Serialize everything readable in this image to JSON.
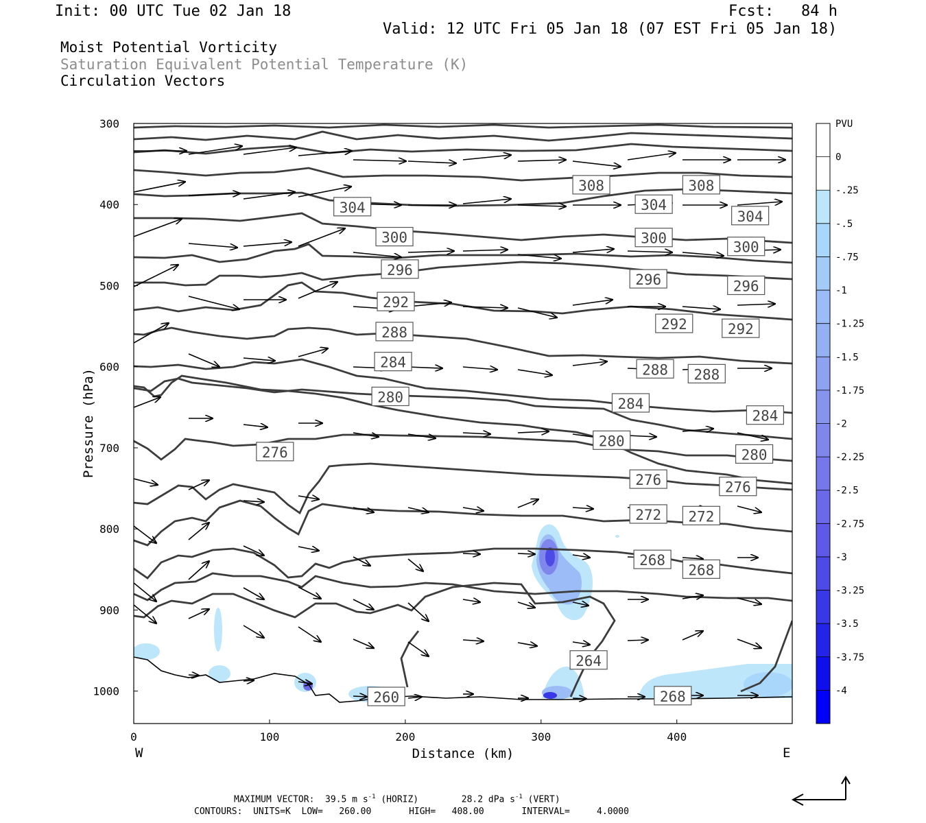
{
  "header": {
    "init": "Init: 00 UTC Tue 02 Jan 18",
    "fcst": "Fcst:   84 h",
    "valid": "Valid: 12 UTC Fri 05 Jan 18 (07 EST Fri 05 Jan 18)"
  },
  "titles": [
    "Moist Potential Vorticity",
    "Saturation Equivalent Potential Temperature (K)",
    "Circulation Vectors"
  ],
  "footer": {
    "max_vector_prefix": "MAXIMUM VECTOR:  39.5 m s",
    "max_vector_exp1": "-1",
    "max_vector_mid": " (HORIZ)        28.2 dPa s",
    "max_vector_exp2": "-1",
    "max_vector_suffix": " (VERT)",
    "contours": "CONTOURS:  UNITS=K  LOW=   260.00       HIGH=   408.00       INTERVAL=     4.0000"
  },
  "colors": {
    "contour": "#3c3c3c",
    "terrain": "#000000",
    "pv_shades": [
      "#ffffff",
      "#ffffff",
      "#bde6fb",
      "#a9d6fb",
      "#a3cbf8",
      "#9bbcf6",
      "#94aff3",
      "#8ea2f1",
      "#8794ee",
      "#7f86ec",
      "#7677ea",
      "#6c69e8",
      "#5e5ae7",
      "#4d4ae6",
      "#3938e6",
      "#2424e8",
      "#0f0fee",
      "#0000f8"
    ]
  },
  "chart_data": {
    "type": "cross-section",
    "xlabel": "Distance (km)",
    "ylabel": "Pressure (hPa)",
    "xlim": [
      0,
      485
    ],
    "ylim": [
      1040,
      300
    ],
    "x_ticks": [
      0,
      100,
      200,
      300,
      400
    ],
    "y_ticks": [
      300,
      400,
      500,
      600,
      700,
      800,
      900,
      1000
    ],
    "x_end_labels": {
      "left": "W",
      "right": "E"
    },
    "colorbar": {
      "units": "PVU",
      "labels": [
        "0",
        "-.25",
        "-.5",
        "-.75",
        "-1",
        "-1.25",
        "-1.5",
        "-1.75",
        "-2",
        "-2.25",
        "-2.5",
        "-2.75",
        "-3",
        "-3.25",
        "-3.5",
        "-3.75",
        "-4"
      ]
    },
    "isentrope_labels": [
      {
        "x": 337,
        "p": 376,
        "v": "308"
      },
      {
        "x": 418,
        "p": 376,
        "v": "308"
      },
      {
        "x": 161,
        "p": 403,
        "v": "304"
      },
      {
        "x": 383,
        "p": 400,
        "v": "304"
      },
      {
        "x": 454,
        "p": 414,
        "v": "304"
      },
      {
        "x": 192,
        "p": 440,
        "v": "300"
      },
      {
        "x": 383,
        "p": 441,
        "v": "300"
      },
      {
        "x": 451,
        "p": 452,
        "v": "300"
      },
      {
        "x": 196,
        "p": 480,
        "v": "296"
      },
      {
        "x": 379,
        "p": 492,
        "v": "296"
      },
      {
        "x": 451,
        "p": 500,
        "v": "296"
      },
      {
        "x": 193,
        "p": 520,
        "v": "292"
      },
      {
        "x": 398,
        "p": 547,
        "v": "292"
      },
      {
        "x": 447,
        "p": 553,
        "v": "292"
      },
      {
        "x": 192,
        "p": 557,
        "v": "288"
      },
      {
        "x": 384,
        "p": 603,
        "v": "288"
      },
      {
        "x": 422,
        "p": 609,
        "v": "288"
      },
      {
        "x": 191,
        "p": 594,
        "v": "284"
      },
      {
        "x": 366,
        "p": 645,
        "v": "284"
      },
      {
        "x": 465,
        "p": 660,
        "v": "284"
      },
      {
        "x": 189,
        "p": 637,
        "v": "280"
      },
      {
        "x": 352,
        "p": 691,
        "v": "280"
      },
      {
        "x": 457,
        "p": 708,
        "v": "280"
      },
      {
        "x": 104,
        "p": 705,
        "v": "276"
      },
      {
        "x": 379,
        "p": 739,
        "v": "276"
      },
      {
        "x": 445,
        "p": 748,
        "v": "276"
      },
      {
        "x": 379,
        "p": 782,
        "v": "272"
      },
      {
        "x": 418,
        "p": 784,
        "v": "272"
      },
      {
        "x": 382,
        "p": 838,
        "v": "268"
      },
      {
        "x": 418,
        "p": 850,
        "v": "268"
      },
      {
        "x": 335,
        "p": 962,
        "v": "264"
      },
      {
        "x": 186,
        "p": 1007,
        "v": "260"
      },
      {
        "x": 397,
        "p": 1006,
        "v": "268"
      }
    ]
  }
}
